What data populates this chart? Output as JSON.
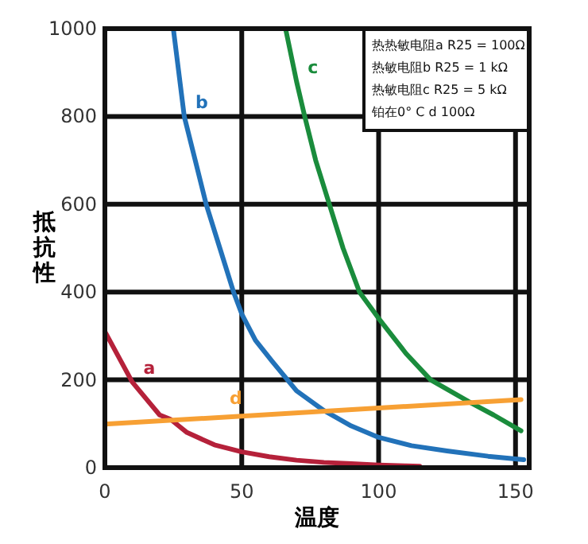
{
  "chart_data": {
    "type": "line",
    "xlabel": "温度",
    "ylabel": "抵抗性",
    "x": [
      0,
      10,
      20,
      24,
      30,
      40,
      50,
      60,
      70,
      80,
      90,
      100,
      110,
      115
    ],
    "xlim": [
      0,
      155
    ],
    "xticks": [
      0,
      50,
      100,
      150
    ],
    "ylim": [
      0,
      1000
    ],
    "yticks": [
      0,
      200,
      400,
      600,
      800,
      1000
    ],
    "grid": true,
    "series": [
      {
        "name": "a",
        "color": "#b5213a",
        "values": [
          310,
          195,
          120,
          110,
          80,
          52,
          36,
          25,
          17,
          12,
          9,
          6,
          4,
          3
        ]
      },
      {
        "name": "b",
        "color": "#2272b9",
        "x": [
          25,
          29,
          33,
          37,
          42,
          47,
          50,
          55,
          61,
          70,
          80,
          90,
          100,
          112,
          125,
          140,
          153
        ],
        "values": [
          1000,
          800,
          700,
          600,
          500,
          400,
          350,
          290,
          243,
          175,
          130,
          95,
          69,
          50,
          38,
          26,
          18
        ]
      },
      {
        "name": "c",
        "color": "#1a8c3c",
        "x": [
          66,
          70,
          73,
          77,
          82,
          87,
          93,
          100,
          110,
          119,
          133,
          142,
          152
        ],
        "values": [
          1000,
          880,
          800,
          700,
          600,
          500,
          400,
          340,
          260,
          200,
          150,
          120,
          84
        ]
      },
      {
        "name": "d",
        "color": "#f7a034",
        "x": [
          0,
          152
        ],
        "values": [
          99,
          155
        ]
      }
    ],
    "annotations": [
      "热热敏电阻a R25 = 100Ω",
      "热敏电阻b R25 = 1 kΩ",
      "热敏电阻c R25 = 5 kΩ",
      "铂在0° C d 100Ω"
    ]
  }
}
